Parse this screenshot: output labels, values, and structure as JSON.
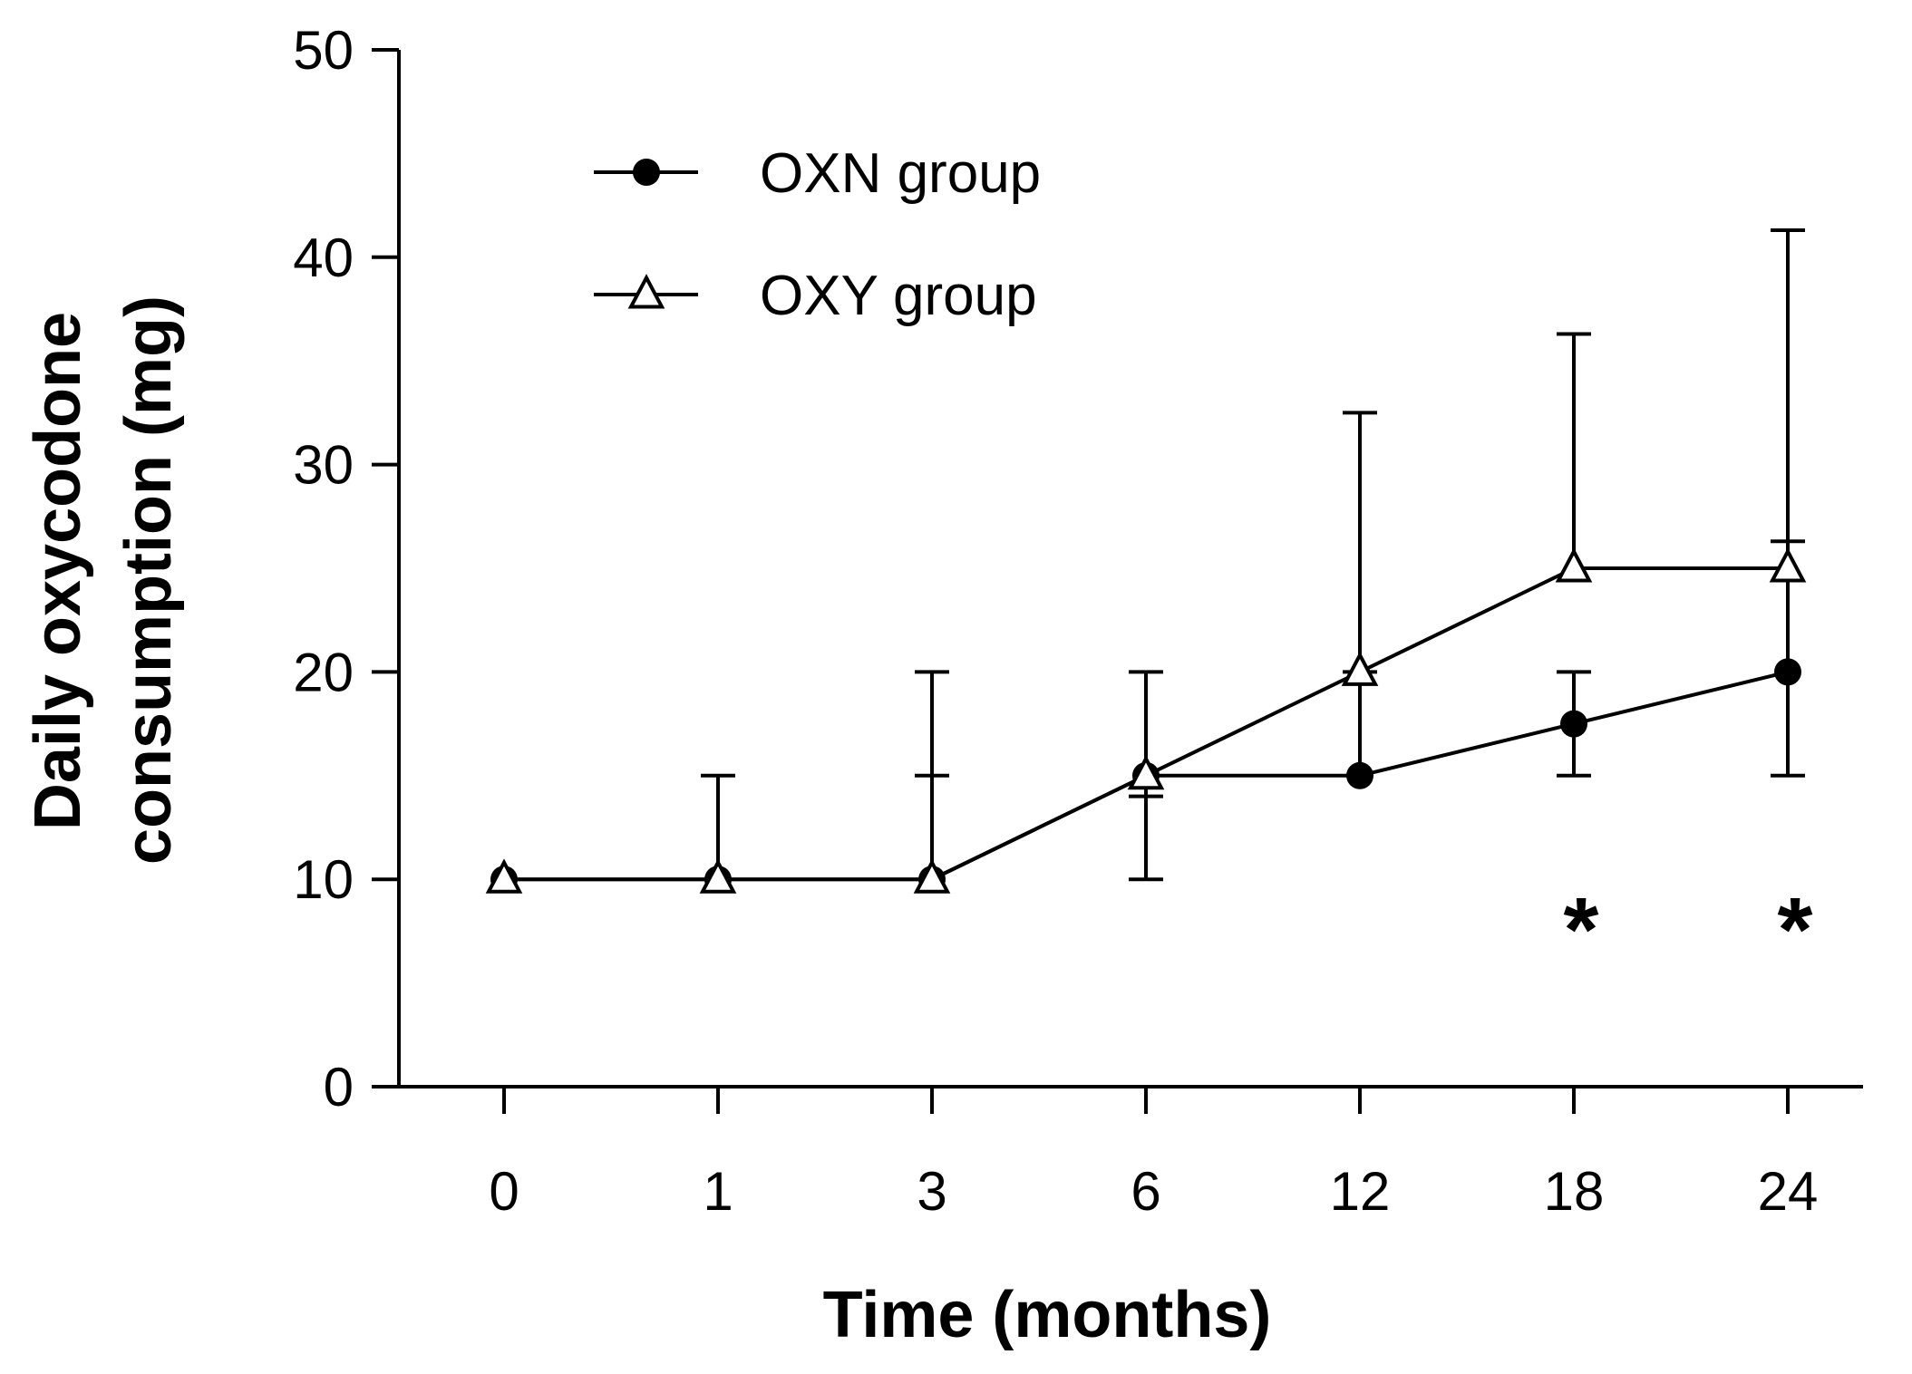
{
  "chart_data": {
    "type": "line",
    "title": "",
    "xlabel": "Time (months)",
    "ylabel_line1": "Daily oxycodone",
    "ylabel_line2": "consumption (mg)",
    "categories": [
      "0",
      "1",
      "3",
      "6",
      "12",
      "18",
      "24"
    ],
    "yticks": [
      "0",
      "10",
      "20",
      "30",
      "40",
      "50"
    ],
    "ylim": [
      0,
      50
    ],
    "legend_position": "top-left",
    "series": [
      {
        "name": "OXN group",
        "marker": "filled-circle",
        "values": [
          10,
          10,
          10,
          15,
          15,
          17.5,
          20
        ],
        "err_low": [
          10,
          10,
          10,
          10,
          15,
          15,
          15
        ],
        "err_high": [
          10,
          10,
          15,
          20,
          20,
          20,
          26.3
        ]
      },
      {
        "name": "OXY group",
        "marker": "open-triangle",
        "values": [
          10,
          10,
          10,
          15,
          20,
          25,
          25
        ],
        "err_low": [
          10,
          10,
          10,
          14,
          20,
          25,
          25
        ],
        "err_high": [
          10,
          15,
          20,
          15,
          32.5,
          36.3,
          41.3
        ]
      }
    ],
    "annotations": [
      {
        "category": "18",
        "text": "*"
      },
      {
        "category": "24",
        "text": "*"
      }
    ],
    "colors": {
      "line": "#000000",
      "background": "#ffffff"
    }
  }
}
